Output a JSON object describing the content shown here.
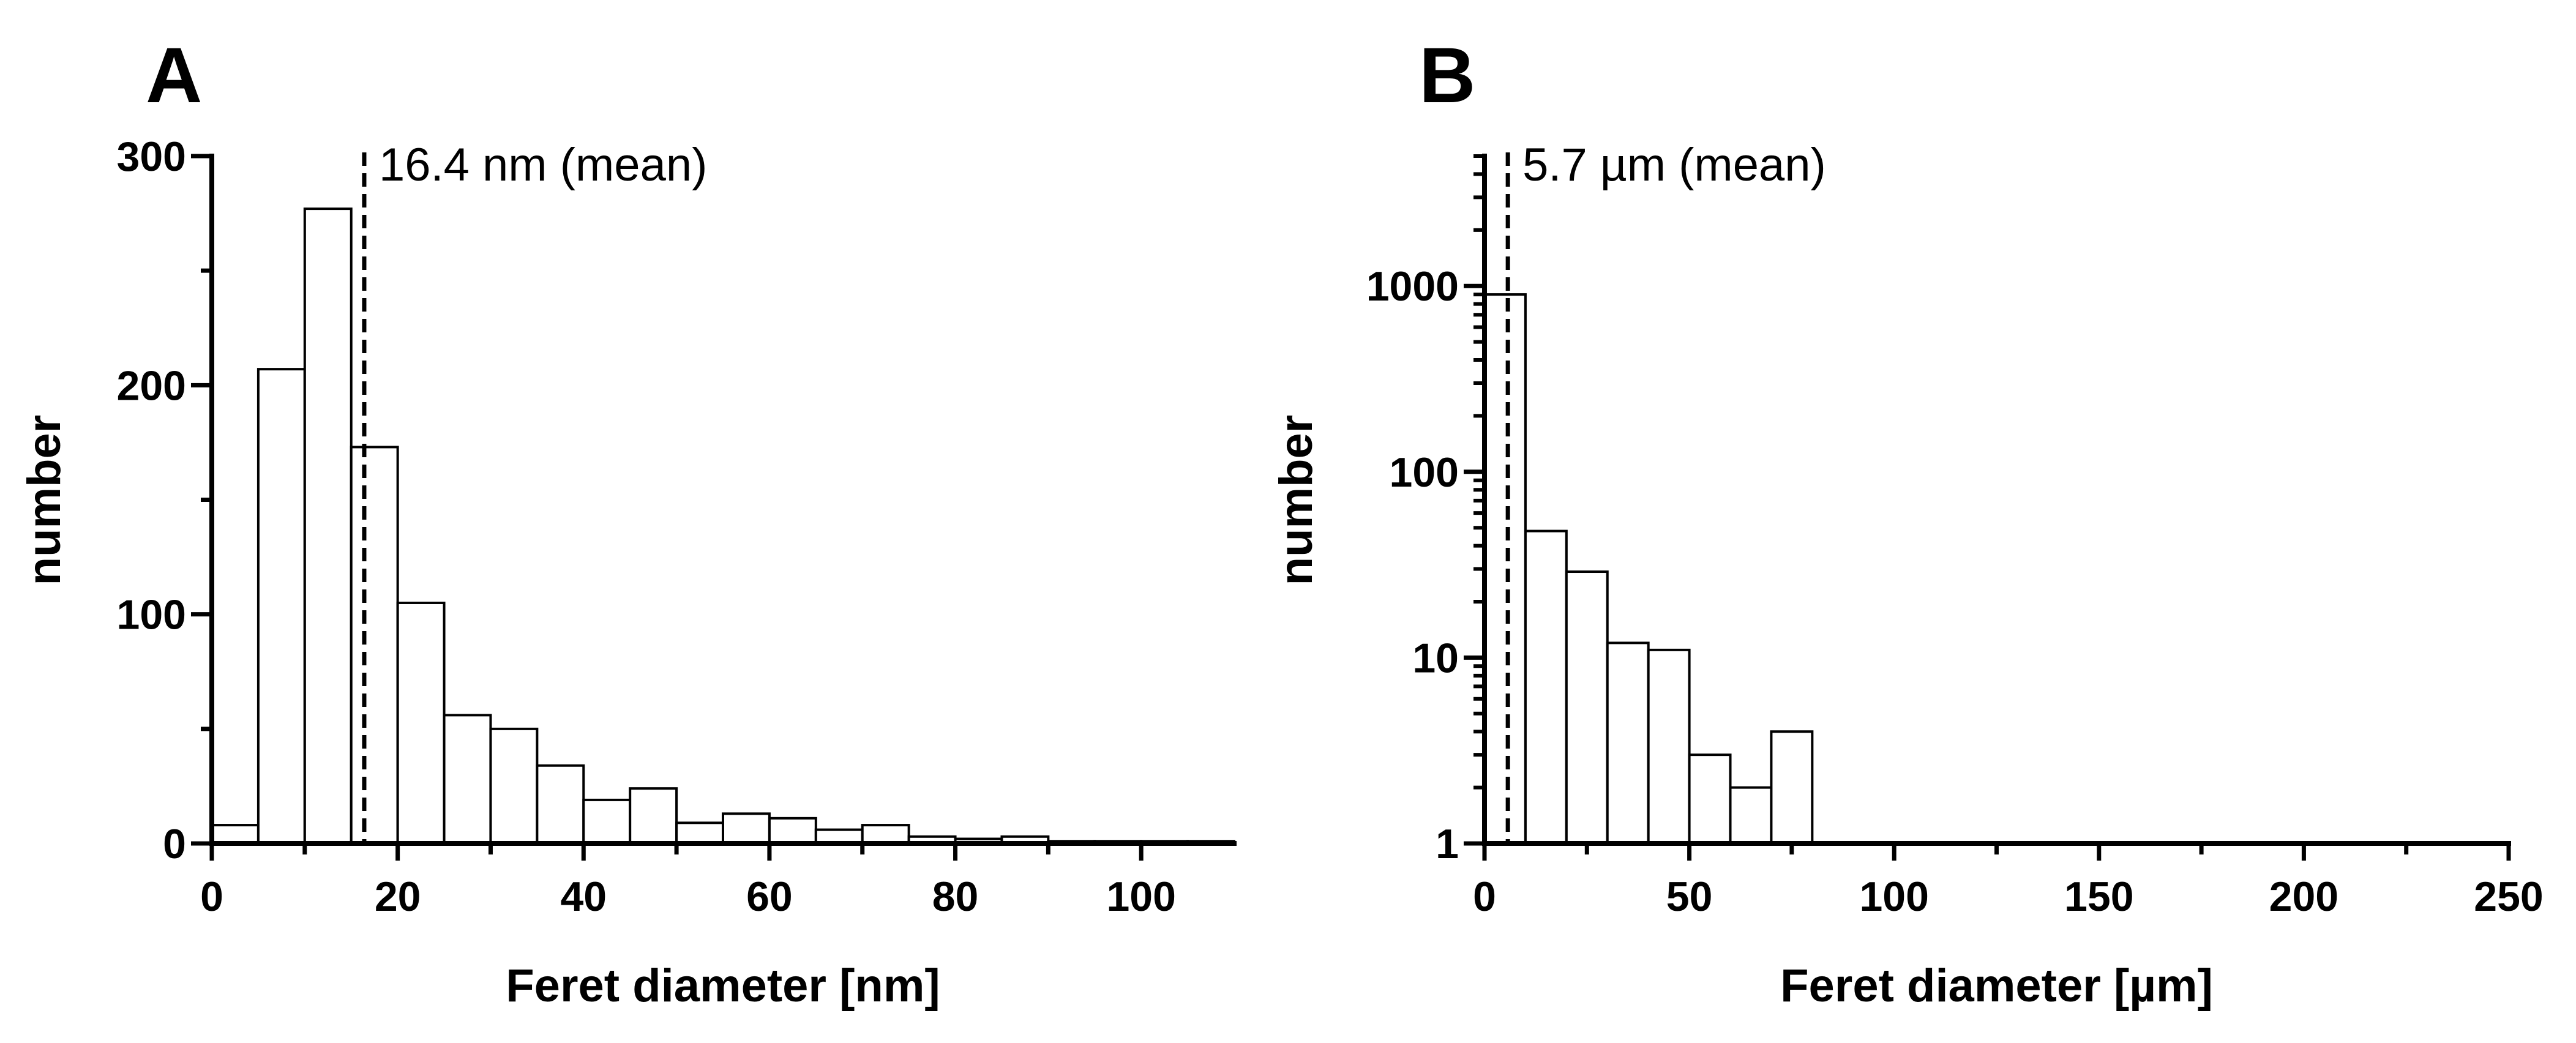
{
  "chart_data": [
    {
      "panel": "A",
      "type": "bar",
      "title": "",
      "xlabel": "Feret diameter [nm]",
      "ylabel": "number",
      "xlim": [
        0,
        110
      ],
      "ylim": [
        0,
        300
      ],
      "yscale": "linear",
      "xticks": [
        0,
        20,
        40,
        60,
        80,
        100
      ],
      "yticks": [
        0,
        100,
        200,
        300
      ],
      "bin_width": 5,
      "bins": [
        {
          "x0": 0,
          "x1": 5,
          "value": 8
        },
        {
          "x0": 5,
          "x1": 10,
          "value": 207
        },
        {
          "x0": 10,
          "x1": 15,
          "value": 277
        },
        {
          "x0": 15,
          "x1": 20,
          "value": 173
        },
        {
          "x0": 20,
          "x1": 25,
          "value": 105
        },
        {
          "x0": 25,
          "x1": 30,
          "value": 56
        },
        {
          "x0": 30,
          "x1": 35,
          "value": 50
        },
        {
          "x0": 35,
          "x1": 40,
          "value": 34
        },
        {
          "x0": 40,
          "x1": 45,
          "value": 19
        },
        {
          "x0": 45,
          "x1": 50,
          "value": 24
        },
        {
          "x0": 50,
          "x1": 55,
          "value": 9
        },
        {
          "x0": 55,
          "x1": 60,
          "value": 13
        },
        {
          "x0": 60,
          "x1": 65,
          "value": 11
        },
        {
          "x0": 65,
          "x1": 70,
          "value": 6
        },
        {
          "x0": 70,
          "x1": 75,
          "value": 8
        },
        {
          "x0": 75,
          "x1": 80,
          "value": 3
        },
        {
          "x0": 80,
          "x1": 85,
          "value": 2
        },
        {
          "x0": 85,
          "x1": 90,
          "value": 3
        },
        {
          "x0": 90,
          "x1": 95,
          "value": 1
        },
        {
          "x0": 95,
          "x1": 100,
          "value": 1
        },
        {
          "x0": 100,
          "x1": 105,
          "value": 1
        },
        {
          "x0": 105,
          "x1": 110,
          "value": 1
        }
      ],
      "mean_line": {
        "x": 16.4,
        "label": "16.4 nm (mean)"
      }
    },
    {
      "panel": "B",
      "type": "bar",
      "title": "",
      "xlabel": "Feret diameter [µm]",
      "ylabel": "number",
      "xlim": [
        0,
        250
      ],
      "ylim": [
        1,
        5000
      ],
      "yscale": "log",
      "xticks": [
        0,
        50,
        100,
        150,
        200,
        250
      ],
      "yticks": [
        1,
        10,
        100,
        1000
      ],
      "bin_width": 10,
      "bins": [
        {
          "x0": 0,
          "x1": 10,
          "value": 900
        },
        {
          "x0": 10,
          "x1": 20,
          "value": 48
        },
        {
          "x0": 20,
          "x1": 30,
          "value": 29
        },
        {
          "x0": 30,
          "x1": 40,
          "value": 12
        },
        {
          "x0": 40,
          "x1": 50,
          "value": 11
        },
        {
          "x0": 50,
          "x1": 60,
          "value": 3
        },
        {
          "x0": 60,
          "x1": 70,
          "value": 2
        },
        {
          "x0": 70,
          "x1": 80,
          "value": 4
        },
        {
          "x0": 80,
          "x1": 90,
          "value": 1
        },
        {
          "x0": 90,
          "x1": 100,
          "value": 1
        },
        {
          "x0": 100,
          "x1": 110,
          "value": 1
        },
        {
          "x0": 110,
          "x1": 120,
          "value": 1
        },
        {
          "x0": 120,
          "x1": 130,
          "value": 1
        },
        {
          "x0": 130,
          "x1": 140,
          "value": 1
        },
        {
          "x0": 140,
          "x1": 150,
          "value": 1
        },
        {
          "x0": 150,
          "x1": 160,
          "value": 1
        },
        {
          "x0": 160,
          "x1": 170,
          "value": 1
        },
        {
          "x0": 170,
          "x1": 180,
          "value": 1
        },
        {
          "x0": 180,
          "x1": 190,
          "value": 1
        },
        {
          "x0": 190,
          "x1": 200,
          "value": 1
        },
        {
          "x0": 200,
          "x1": 210,
          "value": 1
        },
        {
          "x0": 210,
          "x1": 220,
          "value": 1
        },
        {
          "x0": 220,
          "x1": 230,
          "value": 1
        },
        {
          "x0": 230,
          "x1": 240,
          "value": 1
        },
        {
          "x0": 240,
          "x1": 250,
          "value": 1
        }
      ],
      "mean_line": {
        "x": 5.7,
        "label": "5.7 µm (mean)"
      }
    }
  ],
  "colors": {
    "bar_fill": "#ffffff",
    "stroke": "#000000",
    "background": "#ffffff"
  }
}
